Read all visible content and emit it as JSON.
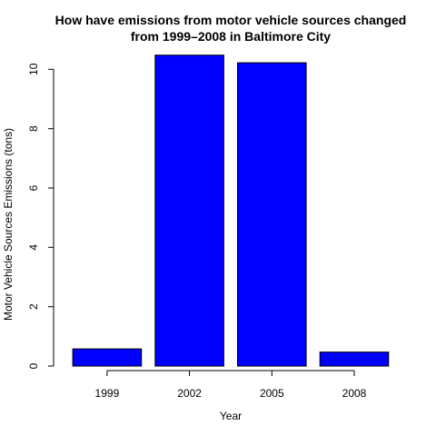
{
  "chart_data": {
    "type": "bar",
    "title_line1": "How have emissions from motor vehicle sources changed",
    "title_line2": "from 1999–2008 in Baltimore City",
    "xlabel": "Year",
    "ylabel": "Motor Vehicle Sources Emissions (tons)",
    "categories": [
      "1999",
      "2002",
      "2005",
      "2008"
    ],
    "values": [
      0.58,
      10.48,
      10.22,
      0.47
    ],
    "ylim": [
      0,
      10.5
    ],
    "yticks": [
      0,
      2,
      4,
      6,
      8,
      10
    ],
    "bar_color": "#0000ff",
    "grid": false,
    "legend": "none"
  }
}
